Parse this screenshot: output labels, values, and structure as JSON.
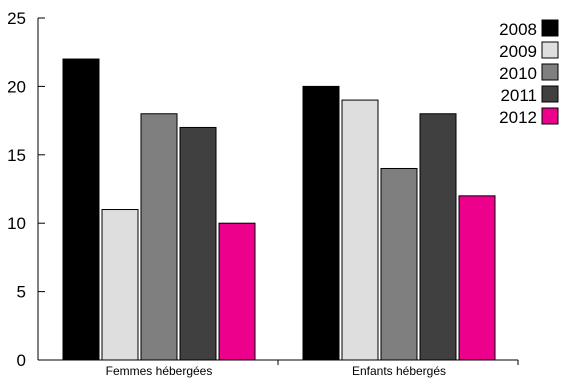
{
  "chart_data": {
    "type": "bar",
    "title": "",
    "xlabel": "",
    "ylabel": "",
    "categories": [
      "Femmes hébergées",
      "Enfants hébergés"
    ],
    "series": [
      {
        "name": "2008",
        "color": "#000000",
        "values": [
          22,
          20
        ]
      },
      {
        "name": "2009",
        "color": "#dedede",
        "values": [
          11,
          19
        ]
      },
      {
        "name": "2010",
        "color": "#7f7f7f",
        "values": [
          18,
          14
        ]
      },
      {
        "name": "2011",
        "color": "#404040",
        "values": [
          17,
          18
        ]
      },
      {
        "name": "2012",
        "color": "#ec008c",
        "values": [
          10,
          12
        ]
      }
    ],
    "ylim": [
      0,
      25
    ],
    "yticks": [
      "0",
      "5",
      "10",
      "15",
      "20",
      "25"
    ],
    "grid": false,
    "legend": "top-right"
  }
}
